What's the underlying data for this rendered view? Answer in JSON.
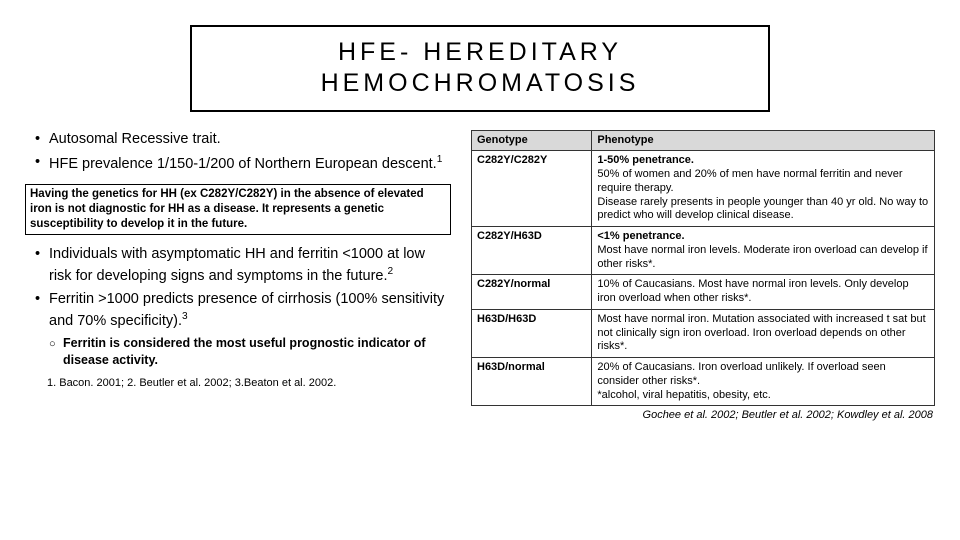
{
  "title": "HFE- HEREDITARY HEMOCHROMATOSIS",
  "bullets1": {
    "b0": "Autosomal Recessive trait.",
    "b1": "HFE prevalence 1/150-1/200 of Northern European descent."
  },
  "sup1": "1",
  "note": "Having the genetics for HH (ex C282Y/C282Y) in the absence of elevated iron is not diagnostic for HH as a disease. It represents a genetic susceptibility to develop it in the future.",
  "bullets2": {
    "b0": "Individuals with asymptomatic HH and ferritin <1000 at low risk for developing signs and symptoms in the future.",
    "b1": "Ferritin >1000 predicts presence of cirrhosis (100% sensitivity and 70% specificity)."
  },
  "sup2": "2",
  "sup3": "3",
  "subbullet": "Ferritin is considered the most useful prognostic indicator of disease activity.",
  "refs": "1. Bacon. 2001; 2. Beutler et al. 2002; 3.Beaton et al. 2002.",
  "table": {
    "header": {
      "c0": "Genotype",
      "c1": "Phenotype"
    },
    "rows": [
      {
        "c0": "C282Y/C282Y",
        "c1_bold": "1-50% penetrance.",
        "c1_rest": "50% of women and 20% of men have normal ferritin and never require therapy.\nDisease rarely presents in people younger than 40 yr old. No way to predict who will develop clinical disease."
      },
      {
        "c0": "C282Y/H63D",
        "c1_bold": "<1% penetrance.",
        "c1_rest": "Most have normal iron levels. Moderate iron overload can develop if other risks*."
      },
      {
        "c0": "C282Y/normal",
        "c1_bold": "",
        "c1_rest": "10% of Caucasians. Most have normal iron levels. Only develop iron overload when other risks*."
      },
      {
        "c0": "H63D/H63D",
        "c1_bold": "",
        "c1_rest": "Most have normal iron. Mutation associated with increased t sat but not clinically sign iron overload. Iron overload depends on other risks*."
      },
      {
        "c0": "H63D/normal",
        "c1_bold": "",
        "c1_rest": "20% of Caucasians. Iron overload unlikely. If overload seen consider other risks*.\n*alcohol, viral hepatitis, obesity, etc."
      }
    ],
    "cite": "Gochee et al. 2002; Beutler et al. 2002; Kowdley et al. 2008"
  },
  "style": {
    "title_border": "#000000",
    "table_header_bg": "#d9d9d9",
    "table_border": "#333333",
    "title_fontsize": 25,
    "title_letterspacing": 4,
    "body_fontsize": 14.5,
    "note_fontsize": 11.5,
    "table_fontsize": 11
  }
}
